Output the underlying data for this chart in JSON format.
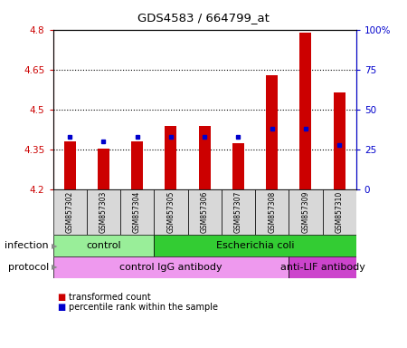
{
  "title": "GDS4583 / 664799_at",
  "samples": [
    "GSM857302",
    "GSM857303",
    "GSM857304",
    "GSM857305",
    "GSM857306",
    "GSM857307",
    "GSM857308",
    "GSM857309",
    "GSM857310"
  ],
  "transformed_count": [
    4.38,
    4.355,
    4.38,
    4.44,
    4.44,
    4.375,
    4.63,
    4.79,
    4.565
  ],
  "percentile_rank": [
    33,
    30,
    33,
    33,
    33,
    33,
    38,
    38,
    28
  ],
  "ymin": 4.2,
  "ymax": 4.8,
  "yticks": [
    4.2,
    4.35,
    4.5,
    4.65,
    4.8
  ],
  "ytick_labels": [
    "4.2",
    "4.35",
    "4.5",
    "4.65",
    "4.8"
  ],
  "right_yticks": [
    0,
    25,
    50,
    75,
    100
  ],
  "right_ytick_labels": [
    "0",
    "25",
    "50",
    "75",
    "100%"
  ],
  "bar_color": "#cc0000",
  "blue_color": "#0000cc",
  "infection_groups": [
    {
      "label": "control",
      "start": 0,
      "end": 3,
      "color": "#99ee99"
    },
    {
      "label": "Escherichia coli",
      "start": 3,
      "end": 9,
      "color": "#33cc33"
    }
  ],
  "protocol_groups": [
    {
      "label": "control IgG antibody",
      "start": 0,
      "end": 7,
      "color": "#ee99ee"
    },
    {
      "label": "anti-LIF antibody",
      "start": 7,
      "end": 9,
      "color": "#cc44cc"
    }
  ],
  "infection_label": "infection",
  "protocol_label": "protocol",
  "legend_red_label": "transformed count",
  "legend_blue_label": "percentile rank within the sample",
  "bar_width": 0.35,
  "bg_color": "#d8d8d8"
}
